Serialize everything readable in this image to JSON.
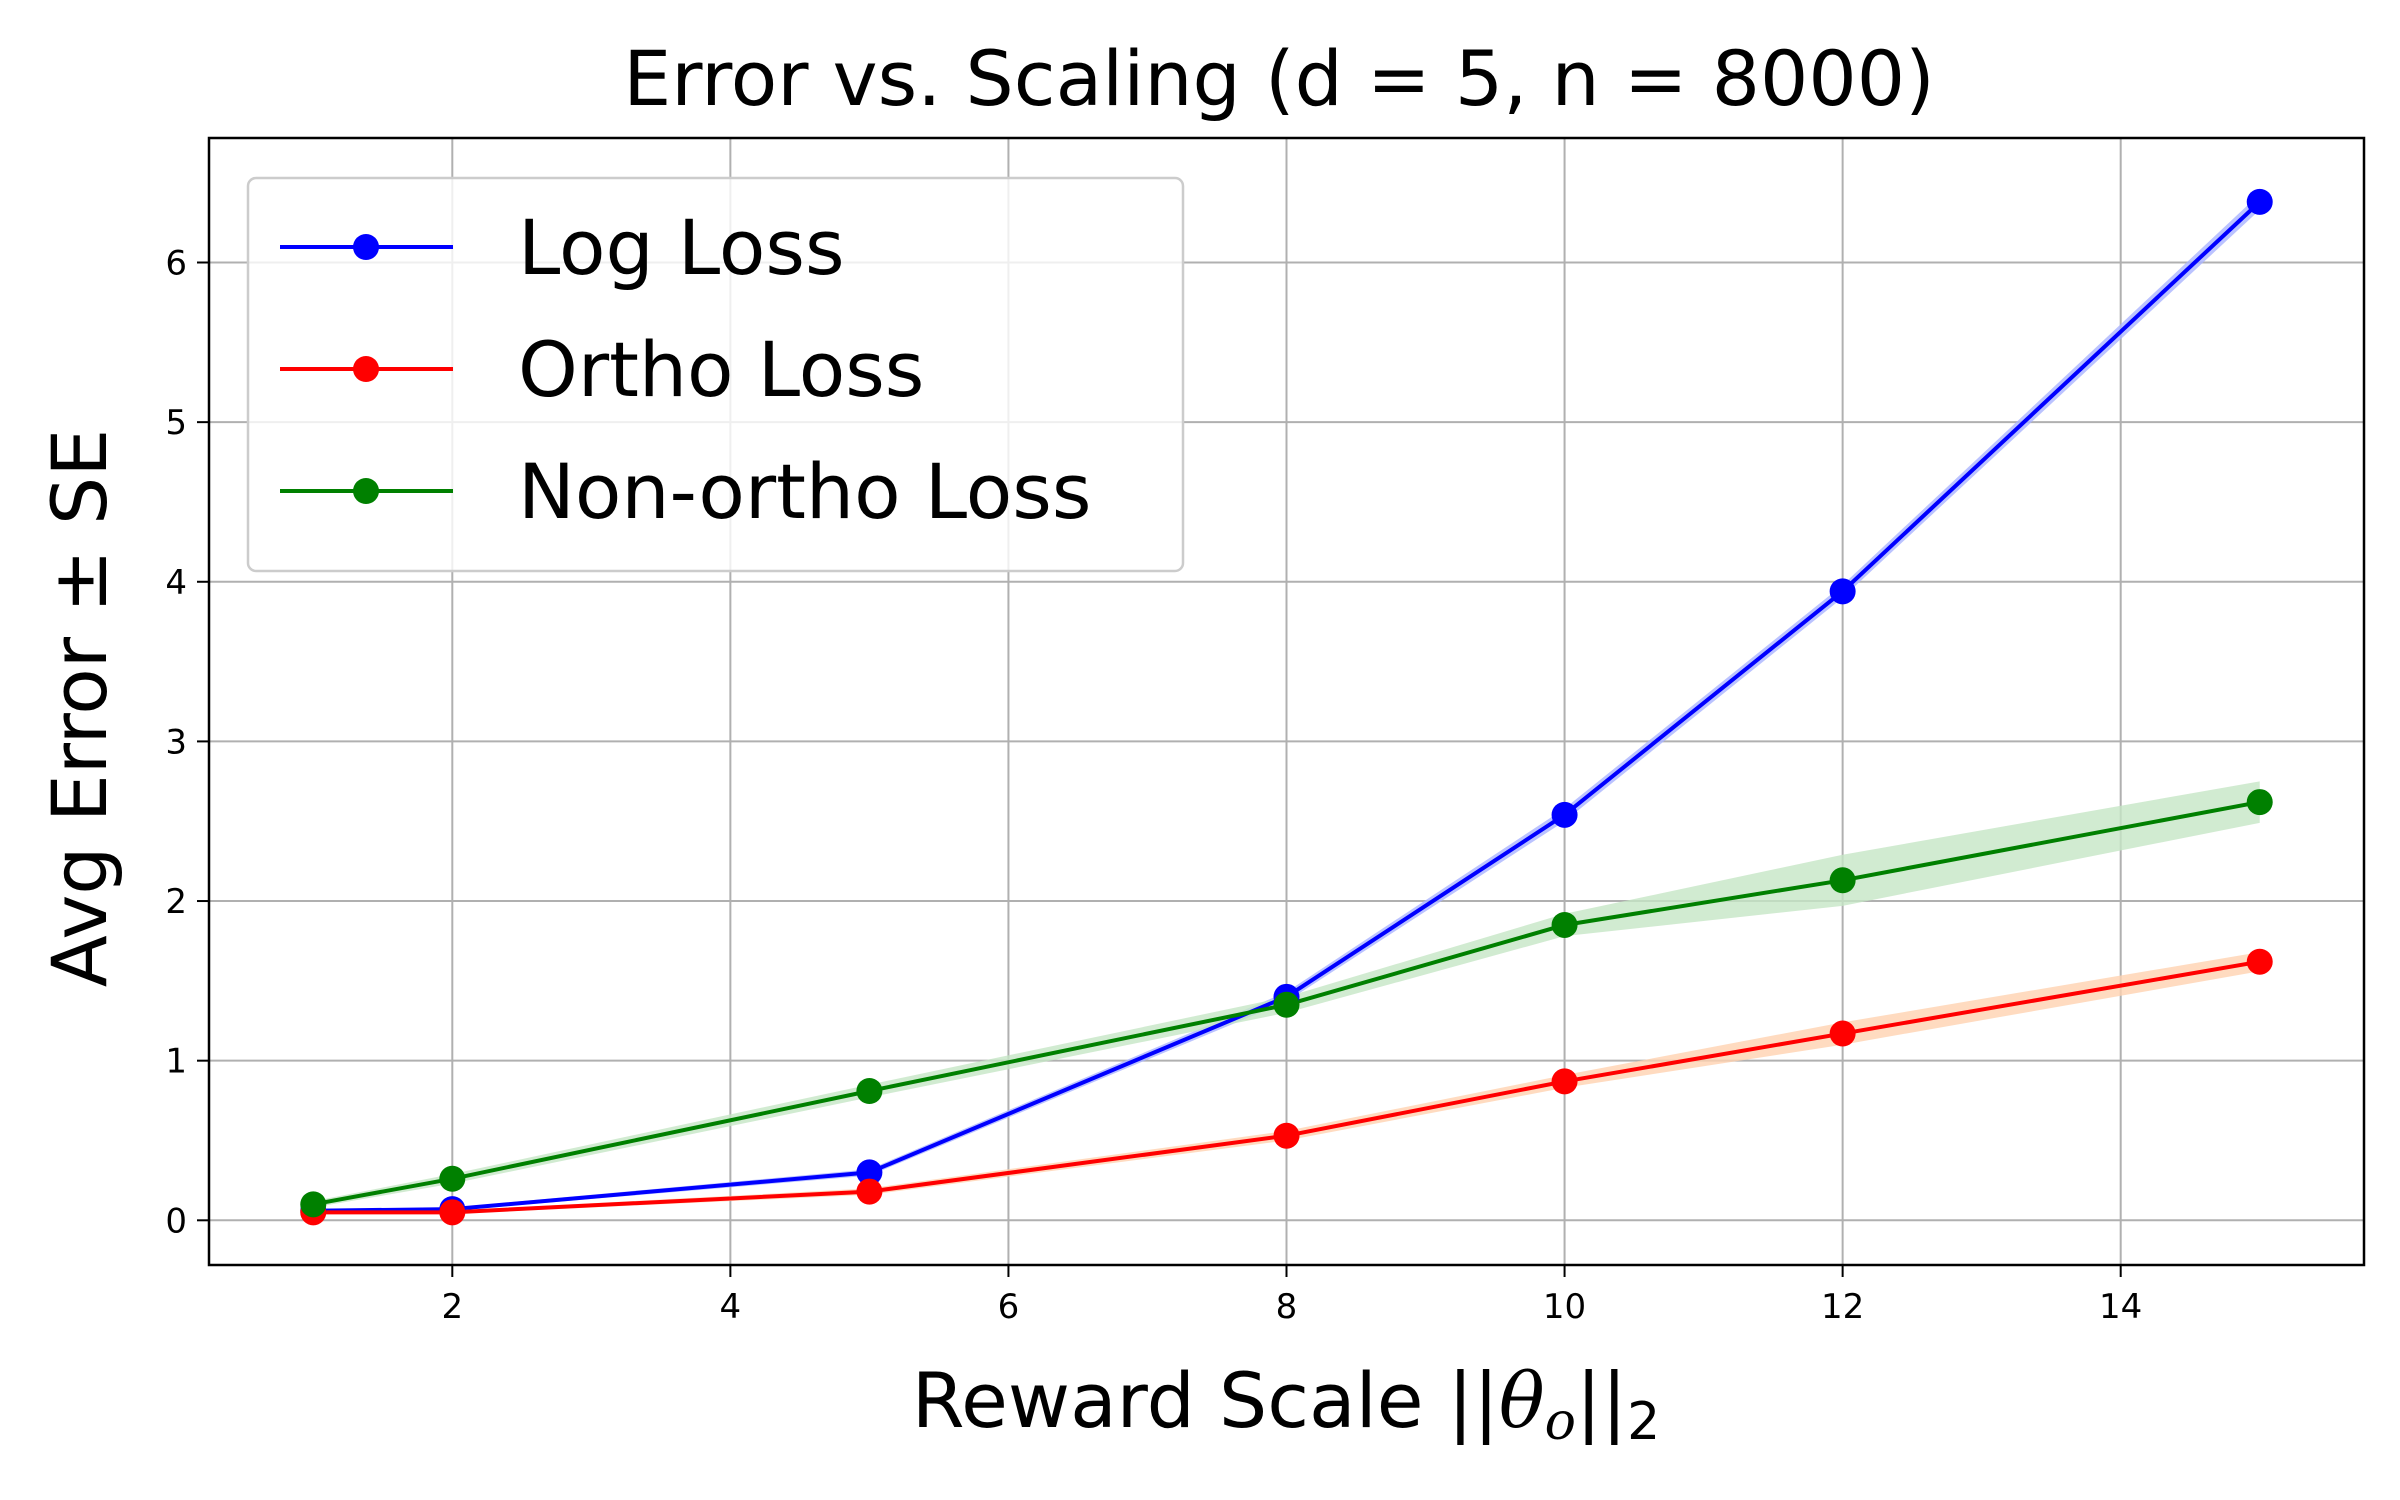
{
  "chart_data": {
    "type": "line",
    "title": "Error vs. Scaling (d = 5, n = 8000)",
    "xlabel": "Reward Scale ||θo||2",
    "xlabel_parts": {
      "prefix": "Reward Scale ||",
      "theta": "θ",
      "sub_o": "o",
      "bars": "||",
      "sub_2": "2"
    },
    "ylabel": "Avg Error ± SE",
    "xlim": [
      0.25,
      15.75
    ],
    "ylim": [
      -0.28,
      6.78
    ],
    "xticks": [
      2,
      4,
      6,
      8,
      10,
      12,
      14
    ],
    "yticks": [
      0,
      1,
      2,
      3,
      4,
      5,
      6
    ],
    "grid": true,
    "legend_position": "upper-left",
    "x": [
      1,
      2,
      5,
      8,
      10,
      12,
      15
    ],
    "series": [
      {
        "name": "Log Loss",
        "color": "#0000ff",
        "band_color": "#aab4ff",
        "values": [
          0.06,
          0.07,
          0.3,
          1.4,
          2.54,
          3.94,
          6.38
        ],
        "se": [
          0.01,
          0.01,
          0.02,
          0.03,
          0.04,
          0.04,
          0.05
        ]
      },
      {
        "name": "Ortho Loss",
        "color": "#ff0000",
        "band_color": "#ffd2b0",
        "values": [
          0.05,
          0.05,
          0.18,
          0.53,
          0.87,
          1.17,
          1.62
        ],
        "se": [
          0.01,
          0.01,
          0.02,
          0.03,
          0.04,
          0.07,
          0.06
        ]
      },
      {
        "name": "Non-ortho Loss",
        "color": "#008000",
        "band_color": "#c6e6c6",
        "values": [
          0.1,
          0.26,
          0.81,
          1.35,
          1.85,
          2.13,
          2.62
        ],
        "se": [
          0.02,
          0.03,
          0.04,
          0.05,
          0.07,
          0.16,
          0.13
        ]
      }
    ]
  }
}
